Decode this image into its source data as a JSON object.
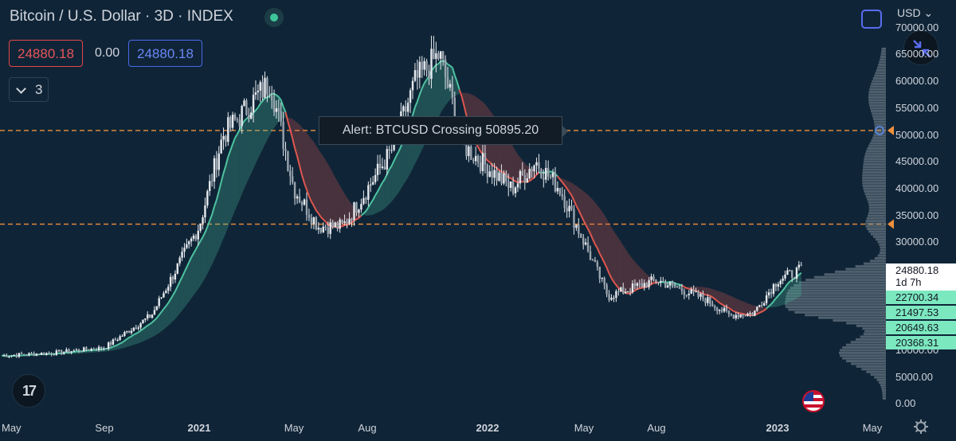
{
  "header": {
    "title": "Bitcoin / U.S. Dollar · 3D · INDEX",
    "sell_price": "24880.18",
    "spread": "0.00",
    "buy_price": "24880.18",
    "indicator_count": "3",
    "currency": "USD"
  },
  "alert": {
    "text": "Alert: BTCUSD Crossing 50895.20",
    "levels": [
      50895.2,
      33400
    ]
  },
  "price_axis": {
    "labels": [
      "70000.00",
      "65000.00",
      "60000.00",
      "55000.00",
      "50000.00",
      "45000.00",
      "40000.00",
      "35000.00",
      "30000.00",
      "10000.00",
      "5000.00",
      "0.00"
    ],
    "last_price": "24880.18",
    "countdown": "1d 7h",
    "level_tags": [
      "22700.34",
      "21497.53",
      "20649.63",
      "20368.31"
    ]
  },
  "time_axis": {
    "labels": [
      {
        "text": "May",
        "bold": false
      },
      {
        "text": "Sep",
        "bold": false
      },
      {
        "text": "2021",
        "bold": true
      },
      {
        "text": "May",
        "bold": false
      },
      {
        "text": "Aug",
        "bold": false
      },
      {
        "text": "2022",
        "bold": true
      },
      {
        "text": "May",
        "bold": false
      },
      {
        "text": "Aug",
        "bold": false
      },
      {
        "text": "2023",
        "bold": true
      },
      {
        "text": "May",
        "bold": false
      }
    ]
  },
  "logo": "17",
  "colors": {
    "background": "#0f2537",
    "candles": "#e6e9ee",
    "band_bull": "#4fc3a1",
    "band_bear": "#e0574f",
    "alert_line": "#f0903c",
    "volume_profile": "#8d99a3"
  },
  "icons": [
    "status-dot-icon",
    "chevron-down-icon",
    "fullscreen-icon",
    "collapse-arrows-icon",
    "us-flag-icon",
    "gear-icon"
  ],
  "chart_data": {
    "type": "candlestick",
    "title": "Bitcoin / U.S. Dollar · 3D · INDEX",
    "x_ticks": [
      "May",
      "Sep",
      "2021",
      "May",
      "Aug",
      "2022",
      "May",
      "Aug",
      "2023",
      "May"
    ],
    "ylim": [
      0,
      70000
    ],
    "y_ticks": [
      0,
      5000,
      10000,
      30000,
      35000,
      40000,
      45000,
      50000,
      55000,
      60000,
      65000,
      70000
    ],
    "last_value": 24880.18,
    "alert_levels": [
      50895.2,
      33400
    ],
    "price_path": [
      {
        "t": "2020-05",
        "close": 9000
      },
      {
        "t": "2020-07",
        "close": 9500
      },
      {
        "t": "2020-09",
        "close": 10500
      },
      {
        "t": "2020-11",
        "close": 16500
      },
      {
        "t": "2021-01",
        "close": 33000
      },
      {
        "t": "2021-02",
        "close": 50000
      },
      {
        "t": "2021-04",
        "close": 60000
      },
      {
        "t": "2021-05",
        "close": 40000
      },
      {
        "t": "2021-06",
        "close": 33000
      },
      {
        "t": "2021-07",
        "close": 33000
      },
      {
        "t": "2021-09",
        "close": 47000
      },
      {
        "t": "2021-10",
        "close": 60000
      },
      {
        "t": "2021-11",
        "close": 65000
      },
      {
        "t": "2021-12",
        "close": 48000
      },
      {
        "t": "2022-02",
        "close": 40000
      },
      {
        "t": "2022-03",
        "close": 45000
      },
      {
        "t": "2022-04",
        "close": 40000
      },
      {
        "t": "2022-05",
        "close": 30000
      },
      {
        "t": "2022-06",
        "close": 20000
      },
      {
        "t": "2022-08",
        "close": 23000
      },
      {
        "t": "2022-10",
        "close": 19500
      },
      {
        "t": "2022-11",
        "close": 16500
      },
      {
        "t": "2022-12",
        "close": 16800
      },
      {
        "t": "2023-01",
        "close": 23000
      },
      {
        "t": "2023-02",
        "close": 24880
      }
    ]
  }
}
